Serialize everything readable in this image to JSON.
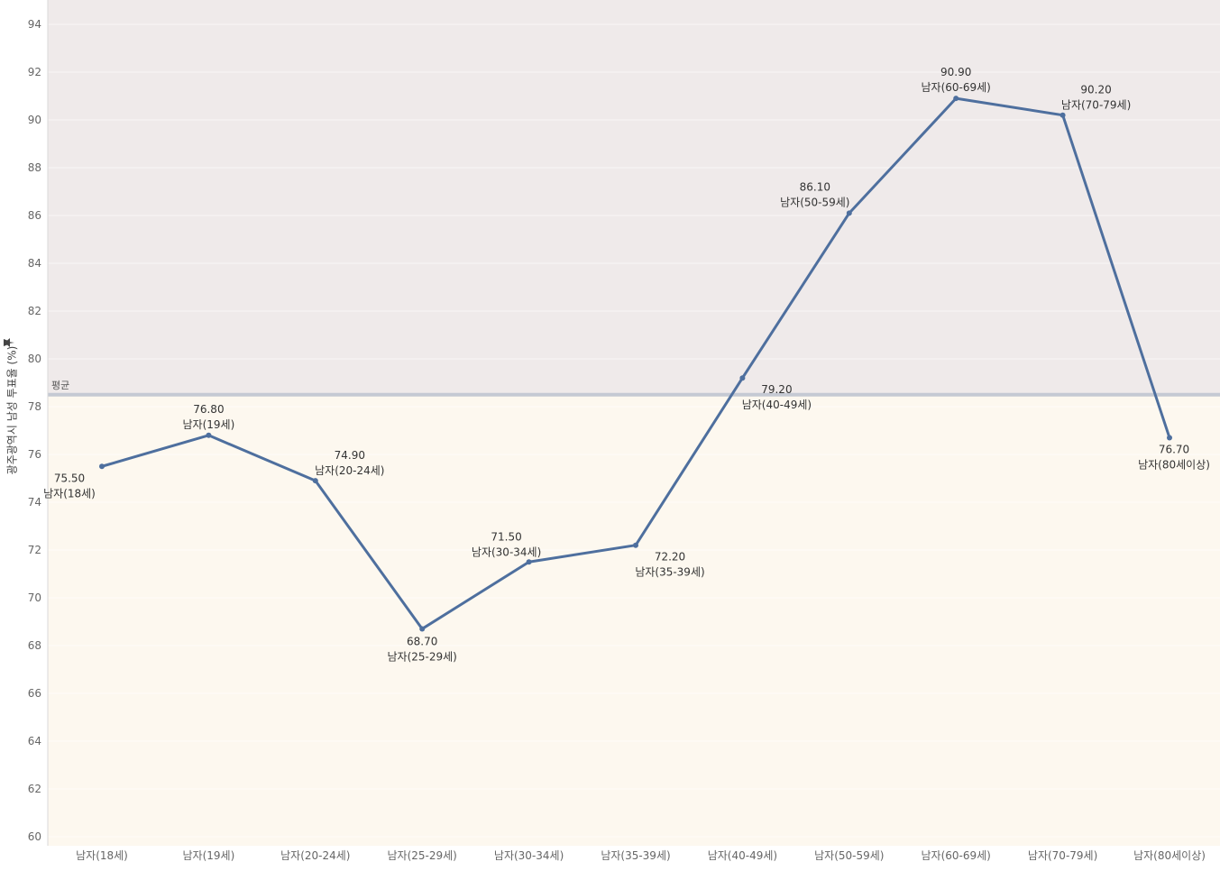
{
  "chart_data": {
    "type": "line",
    "ylabel": "광주광역시 남성 투표율 (%)",
    "ylim": [
      60,
      95
    ],
    "yticks": [
      60,
      62,
      64,
      66,
      68,
      70,
      72,
      74,
      76,
      78,
      80,
      82,
      84,
      86,
      88,
      90,
      92,
      94
    ],
    "categories": [
      "남자(18세)",
      "남자(19세)",
      "남자(20-24세)",
      "남자(25-29세)",
      "남자(30-34세)",
      "남자(35-39세)",
      "남자(40-49세)",
      "남자(50-59세)",
      "남자(60-69세)",
      "남자(70-79세)",
      "남자(80세이상)"
    ],
    "series": [
      {
        "values": [
          75.5,
          76.8,
          74.9,
          68.7,
          71.5,
          72.2,
          79.2,
          86.1,
          90.9,
          90.2,
          76.7
        ],
        "value_labels": [
          "75.50",
          "76.80",
          "74.90",
          "68.70",
          "71.50",
          "72.20",
          "79.20",
          "86.10",
          "90.90",
          "90.20",
          "76.70"
        ],
        "color": "#4e6f9e"
      }
    ],
    "reference_line": {
      "label": "평균",
      "value": 78.5,
      "color": "#c5c9d3"
    },
    "bands": {
      "above_color": "#efeaea",
      "below_color": "#fdf8ef"
    },
    "grid": true,
    "legend": "none",
    "y_axis_icon": "pin-icon"
  }
}
